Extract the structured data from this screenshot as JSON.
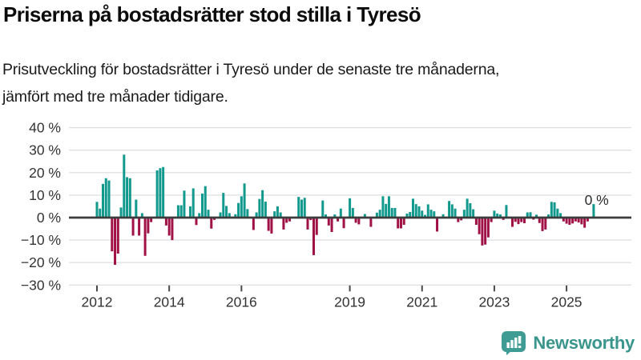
{
  "header": {
    "title": "Priserna på bostadsrätter stod stilla i Tyresö",
    "subtitle_line1": "Prisutveckling för bostadsrätter i Tyresö under de senaste tre månaderna,",
    "subtitle_line2": "jämfört med tre månader tidigare."
  },
  "chart_data": {
    "type": "bar",
    "description": "Monthly bars, Jan 2012 – latest 2025, percent price change over three months",
    "x_start_year": 2012,
    "values": [
      7,
      4,
      15,
      17.5,
      16.5,
      -15,
      -21,
      -16,
      4.5,
      28,
      18,
      17.5,
      -8,
      8,
      -8,
      2,
      -17,
      -7,
      -2,
      0,
      21,
      22,
      22.5,
      -3.5,
      -8,
      -10,
      0,
      5.5,
      5.5,
      12,
      0,
      5,
      13,
      -3.3,
      2,
      10.7,
      14,
      3.5,
      -4.9,
      -1,
      0,
      2.3,
      11,
      5.2,
      2,
      0,
      1.5,
      6.5,
      9.5,
      15.2,
      3.8,
      0,
      -5.5,
      2.3,
      8.3,
      12.2,
      7.1,
      -5.9,
      -7.1,
      2.8,
      5,
      2.3,
      -5.3,
      -2.3,
      -1.7,
      0,
      0,
      9.2,
      8,
      8.8,
      -5.3,
      -1.1,
      -16.7,
      -7.7,
      0,
      7.6,
      1.4,
      -3.5,
      -6.4,
      1.4,
      -1.7,
      4,
      -4.7,
      0,
      8.6,
      4.3,
      -2.3,
      -3,
      0,
      1.6,
      0,
      -4.1,
      0,
      2.2,
      3.5,
      9.5,
      6.1,
      9.5,
      4.3,
      4.3,
      -4.8,
      -4.8,
      -3.2,
      1.8,
      2.5,
      8.4,
      6,
      5,
      3.1,
      1.2,
      5.9,
      3.5,
      2.8,
      -6.2,
      0,
      1.5,
      0,
      7.4,
      5.9,
      4,
      -2,
      -1.2,
      3.5,
      8.4,
      6.4,
      3.7,
      -3.2,
      -7.4,
      -12.4,
      -12,
      -8.8,
      -2,
      3.1,
      1.8,
      1.4,
      -1,
      5.6,
      0,
      -4.1,
      -1.9,
      -2.9,
      -2,
      -2.5,
      2.3,
      2.4,
      -0.9,
      1.3,
      -2.4,
      -6,
      -5.3,
      1.4,
      7,
      6.8,
      4,
      2,
      -1.7,
      -2.7,
      -3.2,
      -2.6,
      -1.7,
      -2.2,
      -3,
      -4.5,
      -1.7,
      0,
      6,
      0
    ],
    "y_ticks": [
      40,
      30,
      20,
      10,
      0,
      -10,
      -20,
      -30
    ],
    "y_tick_suffix": " %",
    "x_tick_years": [
      2012,
      2014,
      2016,
      2019,
      2021,
      2023,
      2025
    ],
    "ylim": [
      -30,
      40
    ],
    "grid": "horizontal",
    "annotation": {
      "text": "0 %",
      "position": "last-bar"
    },
    "colors": {
      "positive": "#12998E",
      "negative": "#A01146",
      "zero_line": "#3C3C3C",
      "grid_line": "#E0E0E0",
      "axis_text": "#333333"
    }
  },
  "footer": {
    "brand": "Newsworthy",
    "brand_color": "#3A958D",
    "logo_icon": "speech-bubble-bar-chart"
  }
}
